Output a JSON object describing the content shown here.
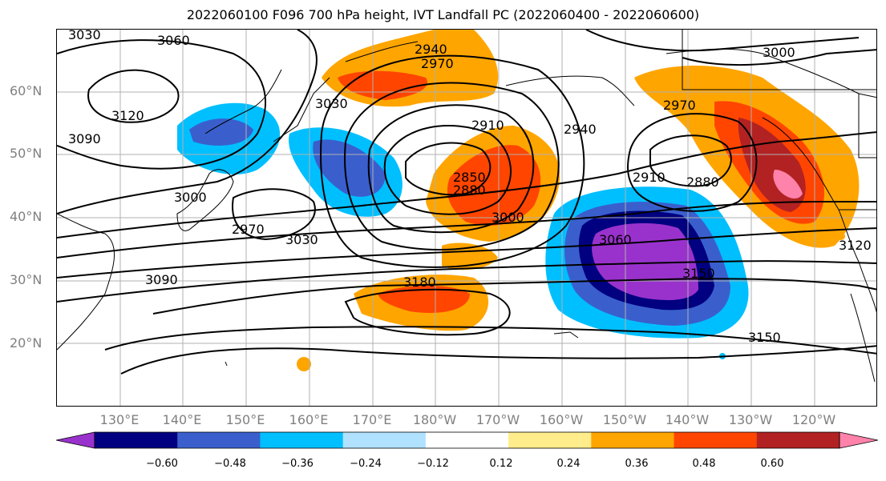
{
  "title": "2022060100 F096 700 hPa height, IVT Landfall PC (2022060400 - 2022060600)",
  "lat_labels": [
    "60°N",
    "50°N",
    "40°N",
    "30°N",
    "20°N"
  ],
  "lon_labels": [
    "130°E",
    "140°E",
    "150°E",
    "160°E",
    "170°E",
    "180°W",
    "170°W",
    "160°W",
    "150°W",
    "140°W",
    "130°W",
    "120°W"
  ],
  "contour_labels": [
    "3060",
    "3030",
    "3120",
    "3090",
    "3000",
    "2970",
    "3030",
    "3090",
    "2940",
    "2970",
    "3030",
    "2910",
    "2940",
    "2850",
    "2880",
    "3000",
    "3180",
    "2910",
    "2880",
    "3060",
    "3150",
    "3150",
    "2970",
    "3000",
    "3120"
  ],
  "colorbar": {
    "ticks": [
      "−0.60",
      "−0.48",
      "−0.36",
      "−0.24",
      "−0.12",
      "0.12",
      "0.24",
      "0.36",
      "0.48",
      "0.60"
    ],
    "colors": [
      "#9932cc",
      "#000080",
      "#3a5fcd",
      "#00bfff",
      "#b0e2ff",
      "#ffffff",
      "#ffec8b",
      "#ffa500",
      "#ff4500",
      "#b22222",
      "#ff82ab"
    ]
  },
  "chart_data": {
    "type": "contour",
    "title": "2022060100 F096 700 hPa height, IVT Landfall PC (2022060400 - 2022060600)",
    "lat_range": [
      10,
      70
    ],
    "lon_range": [
      120,
      250
    ],
    "contour_levels_hPa_height": [
      2850,
      2880,
      2910,
      2940,
      2970,
      3000,
      3030,
      3060,
      3090,
      3120,
      3150,
      3180
    ],
    "shading_levels": [
      -0.6,
      -0.48,
      -0.36,
      -0.24,
      -0.12,
      0.12,
      0.24,
      0.36,
      0.48,
      0.6
    ],
    "grid": true
  }
}
